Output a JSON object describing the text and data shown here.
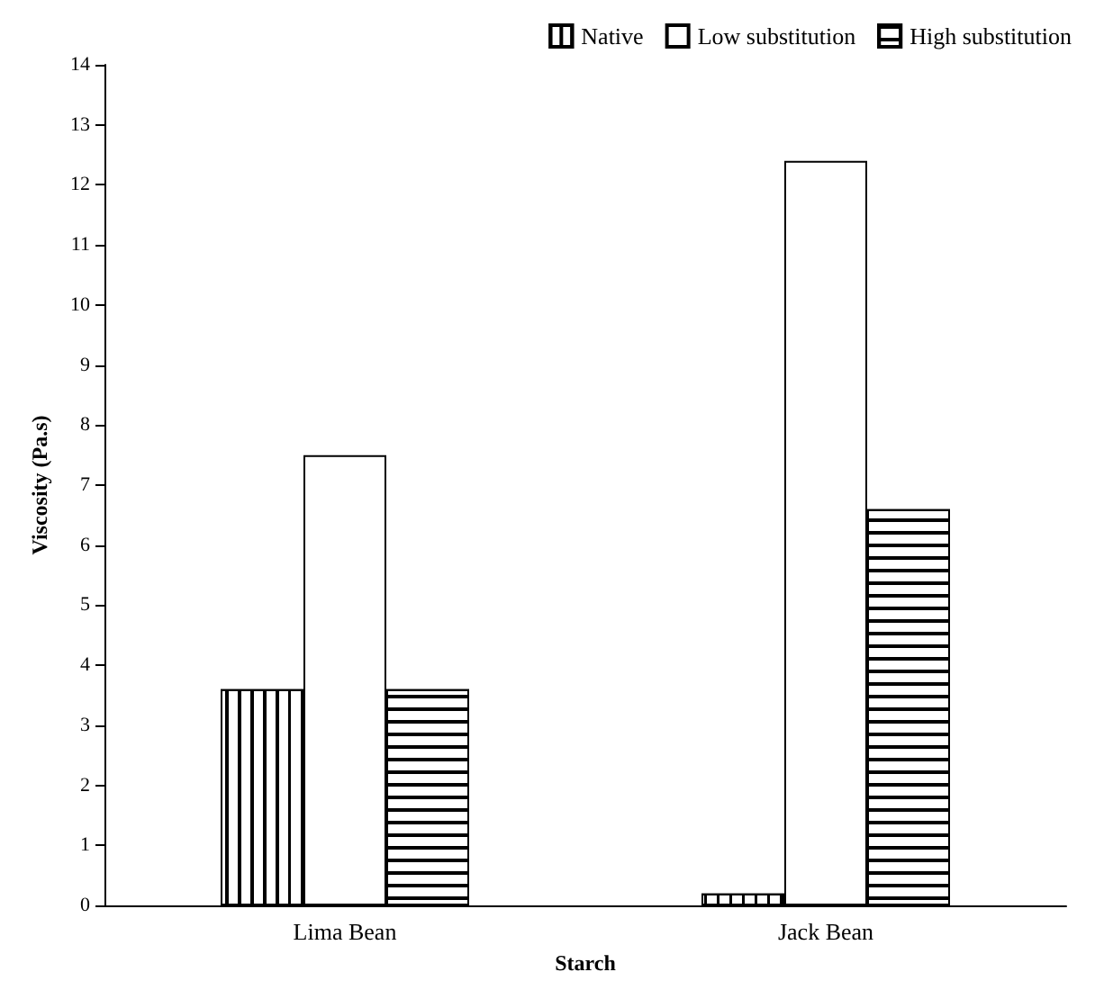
{
  "chart_data": {
    "type": "bar",
    "xlabel": "Starch",
    "ylabel": "Viscosity (Pa.s)",
    "categories": [
      "Lima Bean",
      "Jack Bean"
    ],
    "series": [
      {
        "name": "Native",
        "color": "#ffffff",
        "values": [
          3.6,
          0.2
        ]
      },
      {
        "name": "Low substitution",
        "color": "#ffffff",
        "values": [
          7.5,
          12.4
        ]
      },
      {
        "name": "High substitution",
        "color": "#ffffff",
        "values": [
          3.6,
          6.6
        ]
      }
    ],
    "ylim": [
      0,
      14
    ],
    "yticks": [
      0,
      1,
      2,
      3,
      4,
      5,
      6,
      7,
      8,
      9,
      10,
      11,
      12,
      13,
      14
    ],
    "grid": false,
    "legend": "top right"
  }
}
